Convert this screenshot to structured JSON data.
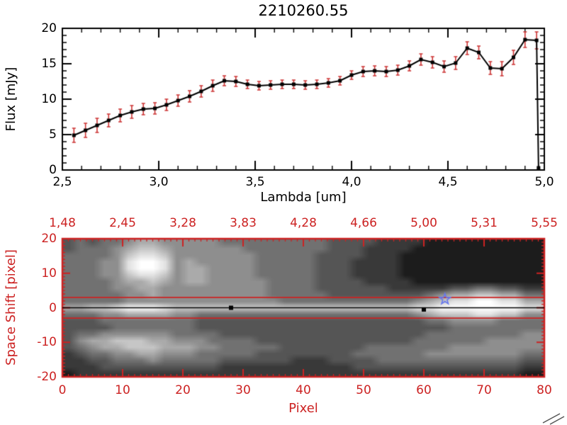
{
  "colors": {
    "background": "#ffffff",
    "axis": "#000000",
    "red_axis": "#cc2222",
    "error": "#cc3333",
    "line": "#000000",
    "marker": "#000000",
    "star": "#6677ee",
    "aperture": "#cc2222",
    "trace": "#000000"
  },
  "chart_data": [
    {
      "type": "line",
      "title": "2210260.55",
      "xlabel": "Lambda [um]",
      "ylabel": "Flux [mJy]",
      "xlim": [
        2.5,
        5.0
      ],
      "ylim": [
        0,
        20
      ],
      "x_minor_step": 0.1,
      "y_minor_step": 1,
      "x_ticks": [
        {
          "v": 2.5,
          "label": "2,5"
        },
        {
          "v": 3.0,
          "label": "3,0"
        },
        {
          "v": 3.5,
          "label": "3,5"
        },
        {
          "v": 4.0,
          "label": "4,0"
        },
        {
          "v": 4.5,
          "label": "4,5"
        },
        {
          "v": 5.0,
          "label": "5,0"
        }
      ],
      "y_ticks": [
        {
          "v": 0,
          "label": "0"
        },
        {
          "v": 5,
          "label": "5"
        },
        {
          "v": 10,
          "label": "10"
        },
        {
          "v": 15,
          "label": "15"
        },
        {
          "v": 20,
          "label": "20"
        }
      ],
      "series": [
        {
          "name": "spectrum",
          "x": [
            2.56,
            2.62,
            2.68,
            2.74,
            2.8,
            2.86,
            2.92,
            2.98,
            3.04,
            3.1,
            3.16,
            3.22,
            3.28,
            3.34,
            3.4,
            3.46,
            3.52,
            3.58,
            3.64,
            3.7,
            3.76,
            3.82,
            3.88,
            3.94,
            4.0,
            4.06,
            4.12,
            4.18,
            4.24,
            4.3,
            4.36,
            4.42,
            4.48,
            4.54,
            4.6,
            4.66,
            4.72,
            4.78,
            4.84,
            4.9,
            4.96,
            4.97
          ],
          "y": [
            4.9,
            5.6,
            6.3,
            7.0,
            7.7,
            8.2,
            8.6,
            8.7,
            9.2,
            9.8,
            10.4,
            11.1,
            11.9,
            12.6,
            12.5,
            12.1,
            11.9,
            12.0,
            12.1,
            12.1,
            12.0,
            12.1,
            12.3,
            12.6,
            13.4,
            13.9,
            14.0,
            13.9,
            14.1,
            14.7,
            15.6,
            15.2,
            14.6,
            15.1,
            17.2,
            16.6,
            14.4,
            14.3,
            15.9,
            18.4,
            18.3,
            0.3
          ],
          "yerr": [
            1.0,
            1.0,
            1.0,
            0.9,
            0.9,
            0.9,
            0.8,
            0.8,
            0.8,
            0.8,
            0.8,
            0.8,
            0.8,
            0.7,
            0.7,
            0.6,
            0.6,
            0.6,
            0.6,
            0.6,
            0.6,
            0.6,
            0.6,
            0.6,
            0.6,
            0.7,
            0.7,
            0.7,
            0.7,
            0.7,
            0.8,
            0.8,
            0.8,
            0.9,
            0.9,
            0.9,
            0.9,
            1.0,
            1.0,
            1.1,
            1.2,
            0.0
          ]
        }
      ]
    },
    {
      "type": "heatmap",
      "xlabel": "Pixel",
      "ylabel": "Space Shift [pixel]",
      "xlim": [
        0,
        80
      ],
      "ylim": [
        -20,
        20
      ],
      "x_minor_step": 1,
      "y_minor_step": 1,
      "top_ticks": [
        {
          "label": "1,48"
        },
        {
          "label": "2,45"
        },
        {
          "label": "3,28"
        },
        {
          "label": "3,83"
        },
        {
          "label": "4,28"
        },
        {
          "label": "4,66"
        },
        {
          "label": "5,00"
        },
        {
          "label": "5,31"
        },
        {
          "label": "5,55"
        }
      ],
      "x_ticks": [
        {
          "v": 0,
          "label": "0"
        },
        {
          "v": 10,
          "label": "10"
        },
        {
          "v": 20,
          "label": "20"
        },
        {
          "v": 30,
          "label": "30"
        },
        {
          "v": 40,
          "label": "40"
        },
        {
          "v": 50,
          "label": "50"
        },
        {
          "v": 60,
          "label": "60"
        },
        {
          "v": 70,
          "label": "70"
        },
        {
          "v": 80,
          "label": "80"
        }
      ],
      "y_ticks": [
        {
          "v": 20,
          "label": "20"
        },
        {
          "v": 10,
          "label": "10"
        },
        {
          "v": 0,
          "label": "0"
        },
        {
          "v": -10,
          "label": "-10"
        },
        {
          "v": -20,
          "label": "-20"
        }
      ],
      "image_levels": 10,
      "image_rows": [
        "3434456655555444444444333322221111111111",
        "3444567765555554444444333222211111111111",
        "4444578875555555444443333222111111111111",
        "4445589985655555444443332222111111111111",
        "4445589985665555444443332222111111111111",
        "4445578875665555444443332222111111111111",
        "4444566765665555544443333222211111111111",
        "4444556655555555544443333332222233443322",
        "4444455655555555544444333333334566776644",
        "4444455555555555554444444444456788998866",
        "6677899987777777777777777777788999999988",
        "4445566665544444444444444444456777887755",
        "3334444444433333333333333333334455554444",
        "3333444444433333333333333333333344444444",
        "3445555554444333333333333333334444444455",
        "3566777665554444333333333333344444455555",
        "3456677766655444443333333444444455555555",
        "2344556655544444333333334444445555555544",
        "2233444544444333333222333344444444444433",
        "2223333333333222222222223333333333333322",
        "1222222222222222222222222222222222222211"
      ],
      "overlays": {
        "aperture_lines_y": [
          3,
          -3
        ],
        "trace_line_y": 0,
        "trace_markers": [
          {
            "x": 28,
            "y": 0
          },
          {
            "x": 60,
            "y": -0.5
          }
        ],
        "star_marker": {
          "x": 63.5,
          "y": 2.5
        }
      }
    }
  ]
}
